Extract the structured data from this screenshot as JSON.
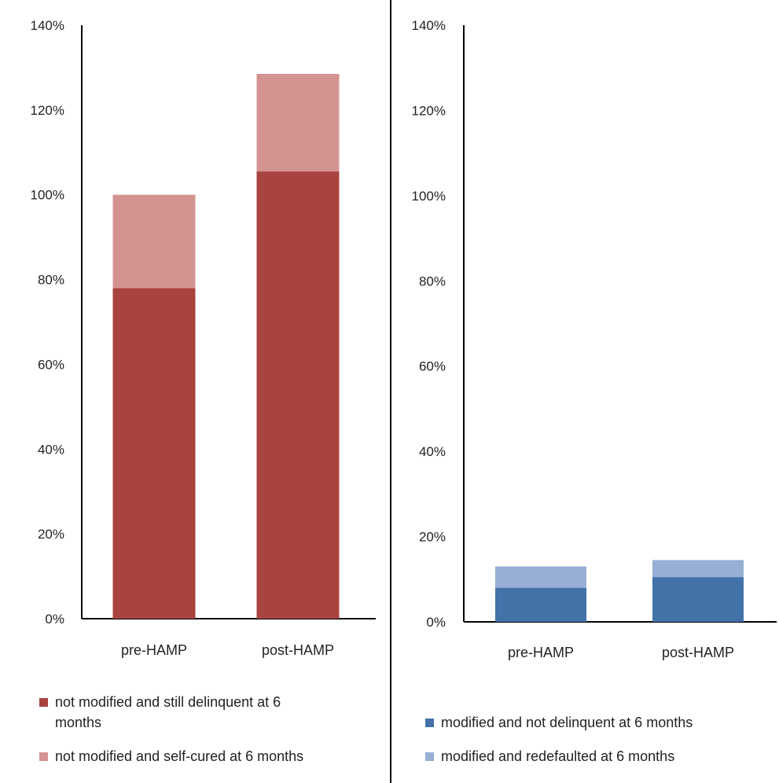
{
  "chart_data": [
    {
      "type": "bar",
      "stacked": true,
      "categories": [
        "pre-HAMP",
        "post-HAMP"
      ],
      "series": [
        {
          "name": "not modified and still delinquent at 6 months",
          "values": [
            78,
            105.5
          ],
          "color": "#a84340"
        },
        {
          "name": "not modified and self-cured at 6 months",
          "values": [
            22,
            23
          ],
          "color": "#d39391"
        }
      ],
      "ylim": [
        0,
        140
      ],
      "yticks": [
        "0%",
        "20%",
        "40%",
        "60%",
        "80%",
        "100%",
        "120%",
        "140%"
      ],
      "grid": false,
      "legend": "bottom"
    },
    {
      "type": "bar",
      "stacked": true,
      "categories": [
        "pre-HAMP",
        "post-HAMP"
      ],
      "series": [
        {
          "name": "modified and not delinquent at 6 months",
          "values": [
            8,
            10.5
          ],
          "color": "#4272a8"
        },
        {
          "name": "modified and redefaulted at 6 months",
          "values": [
            5,
            4
          ],
          "color": "#97afd4"
        }
      ],
      "ylim": [
        0,
        140
      ],
      "yticks": [
        "0%",
        "20%",
        "40%",
        "60%",
        "80%",
        "100%",
        "120%",
        "140%"
      ],
      "grid": false,
      "legend": "bottom"
    }
  ],
  "legends": {
    "left": [
      {
        "line1": "not modified and still delinquent at 6",
        "line2": "months",
        "color": "#a84340"
      },
      {
        "line1": "not modified and self-cured at 6 months",
        "line2": "",
        "color": "#d39391"
      }
    ],
    "right": [
      {
        "line1": "modified and not delinquent at 6 months",
        "color": "#4272a8"
      },
      {
        "line1": "modified and redefaulted at 6 months",
        "color": "#97afd4"
      }
    ]
  }
}
